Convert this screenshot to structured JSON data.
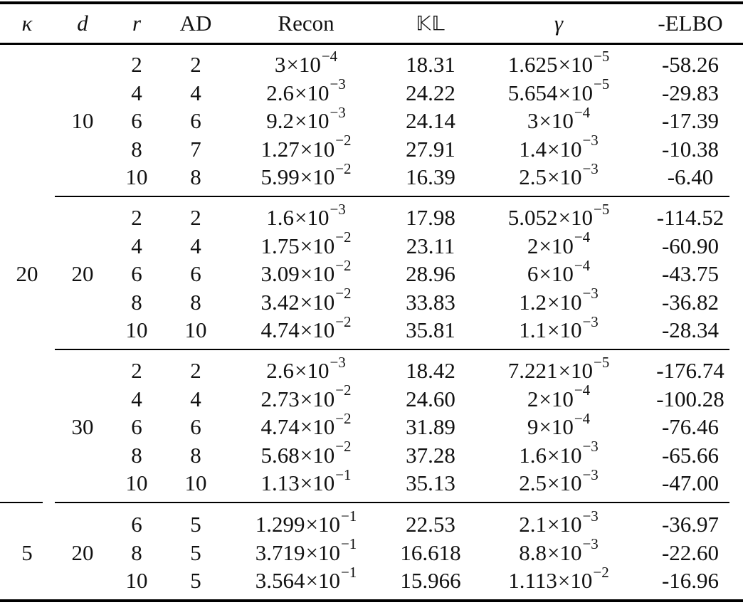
{
  "table": {
    "headers": [
      {
        "key": "kappa",
        "label": "κ",
        "style": "italic"
      },
      {
        "key": "d",
        "label": "d",
        "style": "italic"
      },
      {
        "key": "r",
        "label": "r",
        "style": "italic"
      },
      {
        "key": "ad",
        "label": "AD",
        "style": "normal"
      },
      {
        "key": "recon",
        "label": "Recon",
        "style": "normal"
      },
      {
        "key": "kl",
        "label": "𝕂𝕃",
        "style": "blackboard"
      },
      {
        "key": "gamma",
        "label": "γ",
        "style": "italic"
      },
      {
        "key": "neg_elbo",
        "label": "-ELBO",
        "style": "normal"
      }
    ],
    "groups": [
      {
        "kappa": "20",
        "subgroups": [
          {
            "d": "10",
            "rows": [
              {
                "r": "2",
                "ad": "2",
                "recon": {
                  "m": "3",
                  "e": "−4"
                },
                "kl": "18.31",
                "gamma": {
                  "m": "1.625",
                  "e": "−5"
                },
                "neg_elbo": "-58.26"
              },
              {
                "r": "4",
                "ad": "4",
                "recon": {
                  "m": "2.6",
                  "e": "−3"
                },
                "kl": "24.22",
                "gamma": {
                  "m": "5.654",
                  "e": "−5"
                },
                "neg_elbo": "-29.83"
              },
              {
                "r": "6",
                "ad": "6",
                "recon": {
                  "m": "9.2",
                  "e": "−3"
                },
                "kl": "24.14",
                "gamma": {
                  "m": "3",
                  "e": "−4"
                },
                "neg_elbo": "-17.39"
              },
              {
                "r": "8",
                "ad": "7",
                "recon": {
                  "m": "1.27",
                  "e": "−2"
                },
                "kl": "27.91",
                "gamma": {
                  "m": "1.4",
                  "e": "−3"
                },
                "neg_elbo": "-10.38"
              },
              {
                "r": "10",
                "ad": "8",
                "recon": {
                  "m": "5.99",
                  "e": "−2"
                },
                "kl": "16.39",
                "gamma": {
                  "m": "2.5",
                  "e": "−3"
                },
                "neg_elbo": "-6.40"
              }
            ]
          },
          {
            "d": "20",
            "rows": [
              {
                "r": "2",
                "ad": "2",
                "recon": {
                  "m": "1.6",
                  "e": "−3"
                },
                "kl": "17.98",
                "gamma": {
                  "m": "5.052",
                  "e": "−5"
                },
                "neg_elbo": "-114.52"
              },
              {
                "r": "4",
                "ad": "4",
                "recon": {
                  "m": "1.75",
                  "e": "−2"
                },
                "kl": "23.11",
                "gamma": {
                  "m": "2",
                  "e": "−4"
                },
                "neg_elbo": "-60.90"
              },
              {
                "r": "6",
                "ad": "6",
                "recon": {
                  "m": "3.09",
                  "e": "−2"
                },
                "kl": "28.96",
                "gamma": {
                  "m": "6",
                  "e": "−4"
                },
                "neg_elbo": "-43.75"
              },
              {
                "r": "8",
                "ad": "8",
                "recon": {
                  "m": "3.42",
                  "e": "−2"
                },
                "kl": "33.83",
                "gamma": {
                  "m": "1.2",
                  "e": "−3"
                },
                "neg_elbo": "-36.82"
              },
              {
                "r": "10",
                "ad": "10",
                "recon": {
                  "m": "4.74",
                  "e": "−2"
                },
                "kl": "35.81",
                "gamma": {
                  "m": "1.1",
                  "e": "−3"
                },
                "neg_elbo": "-28.34"
              }
            ]
          },
          {
            "d": "30",
            "rows": [
              {
                "r": "2",
                "ad": "2",
                "recon": {
                  "m": "2.6",
                  "e": "−3"
                },
                "kl": "18.42",
                "gamma": {
                  "m": "7.221",
                  "e": "−5"
                },
                "neg_elbo": "-176.74"
              },
              {
                "r": "4",
                "ad": "4",
                "recon": {
                  "m": "2.73",
                  "e": "−2"
                },
                "kl": "24.60",
                "gamma": {
                  "m": "2",
                  "e": "−4"
                },
                "neg_elbo": "-100.28"
              },
              {
                "r": "6",
                "ad": "6",
                "recon": {
                  "m": "4.74",
                  "e": "−2"
                },
                "kl": "31.89",
                "gamma": {
                  "m": "9",
                  "e": "−4"
                },
                "neg_elbo": "-76.46"
              },
              {
                "r": "8",
                "ad": "8",
                "recon": {
                  "m": "5.68",
                  "e": "−2"
                },
                "kl": "37.28",
                "gamma": {
                  "m": "1.6",
                  "e": "−3"
                },
                "neg_elbo": "-65.66"
              },
              {
                "r": "10",
                "ad": "10",
                "recon": {
                  "m": "1.13",
                  "e": "−1"
                },
                "kl": "35.13",
                "gamma": {
                  "m": "2.5",
                  "e": "−3"
                },
                "neg_elbo": "-47.00"
              }
            ]
          }
        ]
      },
      {
        "kappa": "5",
        "subgroups": [
          {
            "d": "20",
            "rows": [
              {
                "r": "6",
                "ad": "5",
                "recon": {
                  "m": "1.299",
                  "e": "−1"
                },
                "kl": "22.53",
                "gamma": {
                  "m": "2.1",
                  "e": "−3"
                },
                "neg_elbo": "-36.97"
              },
              {
                "r": "8",
                "ad": "5",
                "recon": {
                  "m": "3.719",
                  "e": "−1"
                },
                "kl": "16.618",
                "gamma": {
                  "m": "8.8",
                  "e": "−3"
                },
                "neg_elbo": "-22.60"
              },
              {
                "r": "10",
                "ad": "5",
                "recon": {
                  "m": "3.564",
                  "e": "−1"
                },
                "kl": "15.966",
                "gamma": {
                  "m": "1.113",
                  "e": "−2"
                },
                "neg_elbo": "-16.96"
              }
            ]
          }
        ]
      }
    ]
  },
  "symbols": {
    "times": "×",
    "ten": "10"
  }
}
